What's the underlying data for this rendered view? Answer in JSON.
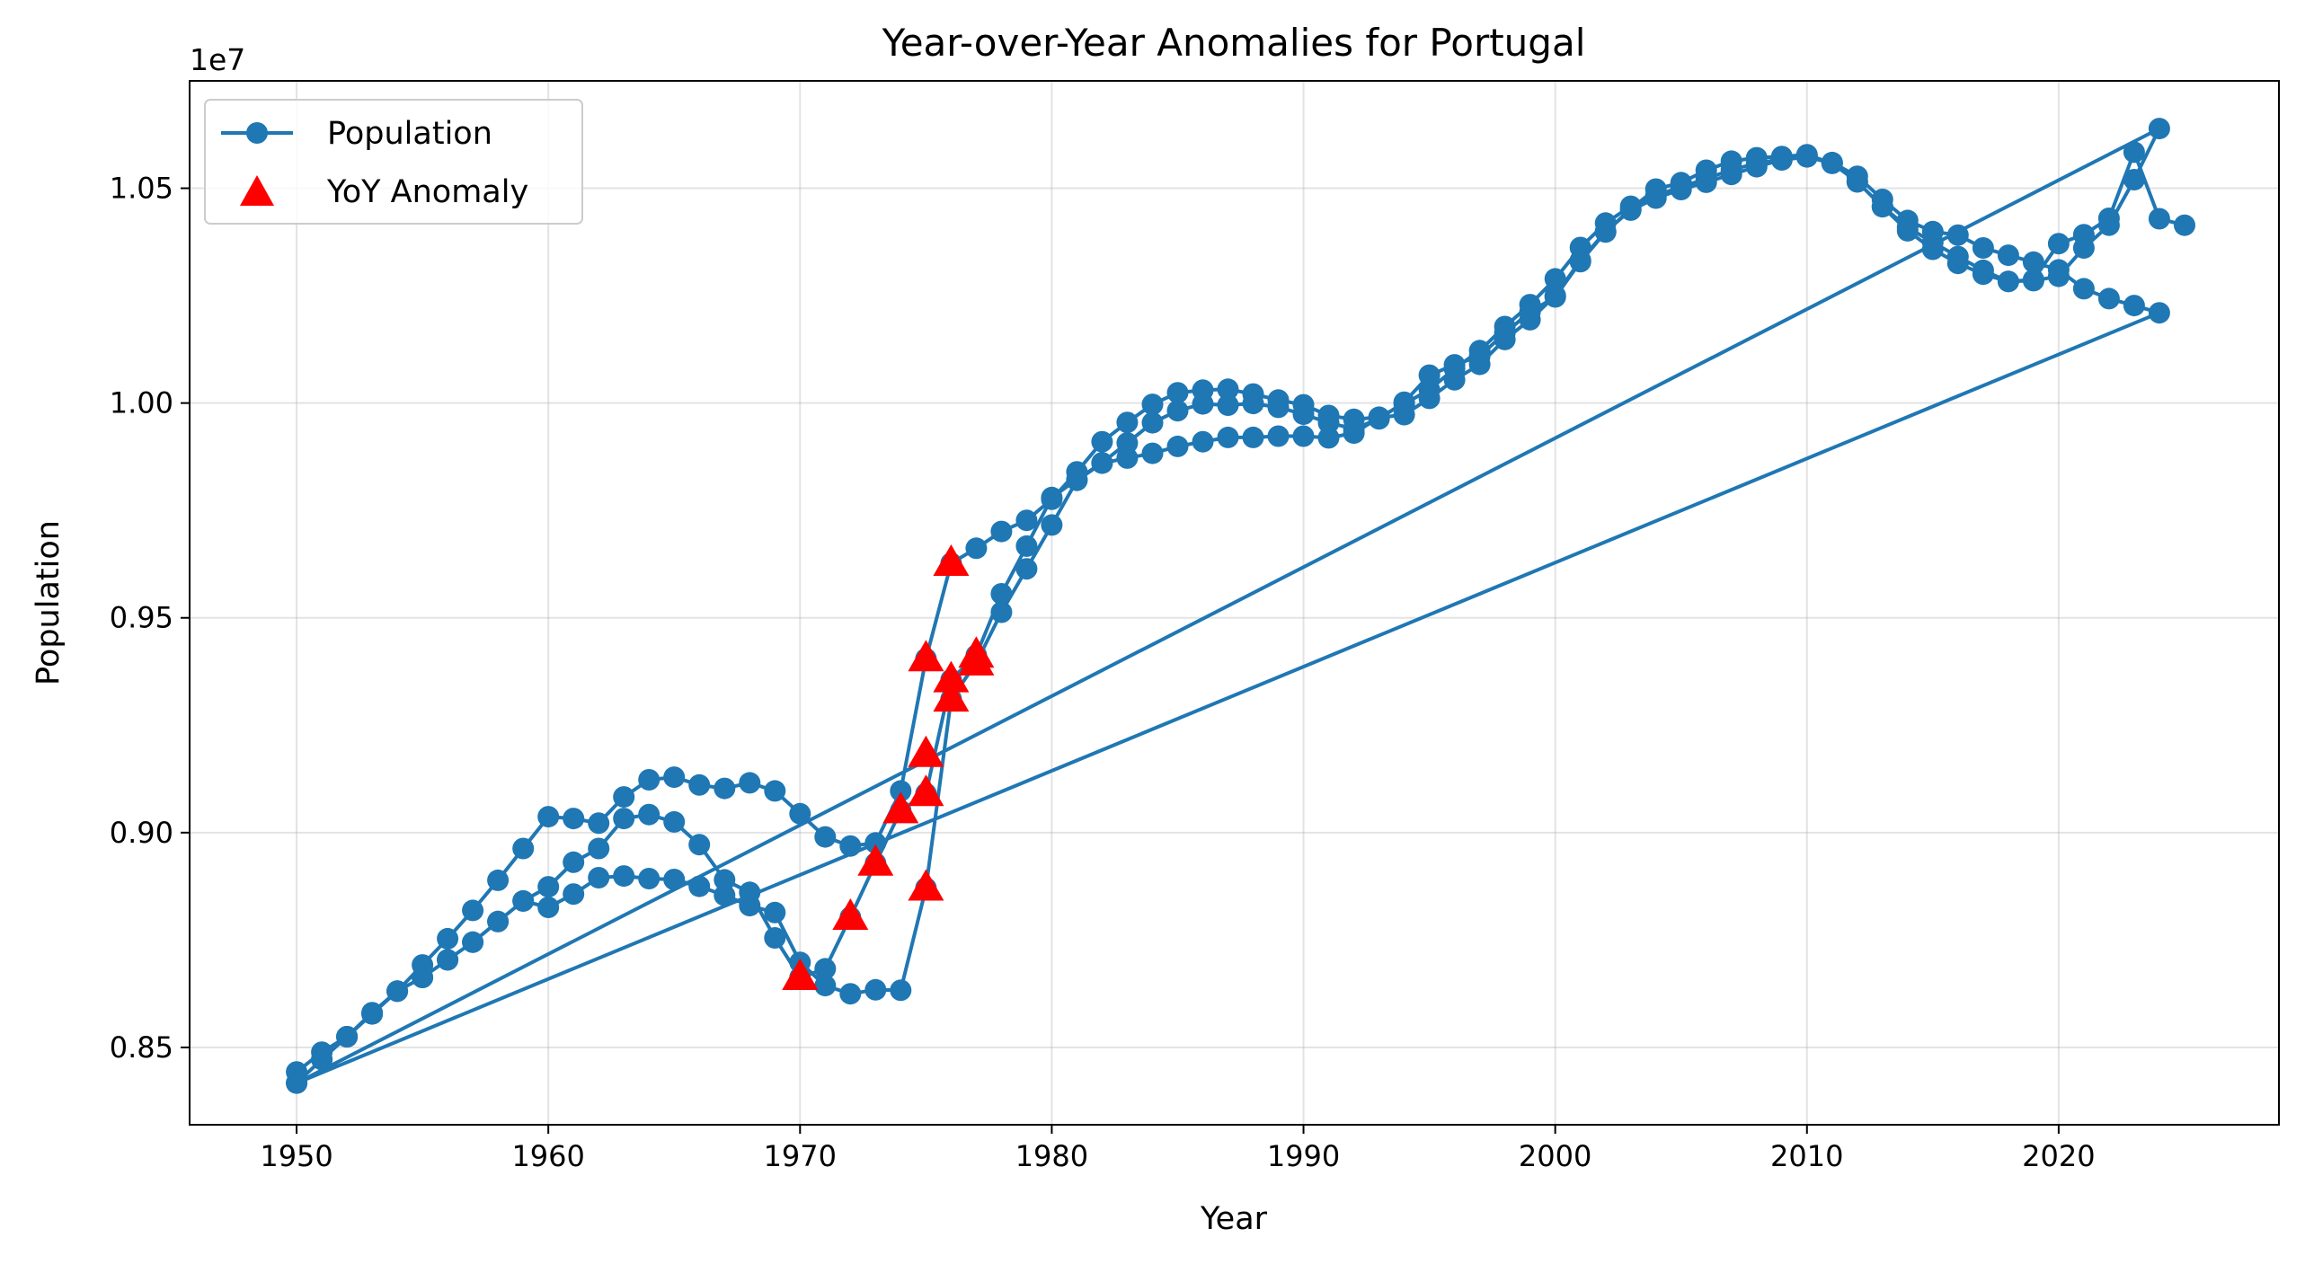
{
  "chart_data": {
    "type": "line",
    "title": "Year-over-Year Anomalies for Portugal",
    "xlabel": "Year",
    "ylabel": "Population",
    "y_offset_label": "1e7",
    "xlim": [
      1945.75,
      2028.75
    ],
    "ylim": [
      8320000,
      10750000
    ],
    "x_ticks": [
      1950,
      1960,
      1970,
      1980,
      1990,
      2000,
      2010,
      2020
    ],
    "x_tick_labels": [
      "1950",
      "1960",
      "1970",
      "1980",
      "1990",
      "2000",
      "2010",
      "2020"
    ],
    "y_ticks": [
      8500000,
      9000000,
      9500000,
      10000000,
      10500000
    ],
    "y_tick_labels": [
      "0.85",
      "0.90",
      "0.95",
      "1.00",
      "1.05"
    ],
    "grid": true,
    "legend_position": "upper left",
    "series": [
      {
        "name": "Population",
        "color": "#1f77b4",
        "marker": "circle",
        "segments": [
          {
            "x": [
              1950,
              1951,
              1952,
              1953,
              1954,
              1955,
              1956,
              1957,
              1958,
              1959,
              1960,
              1961,
              1962,
              1963,
              1964,
              1965,
              1966,
              1967,
              1968,
              1969,
              1970,
              1971,
              1972,
              1973,
              1974,
              1975,
              1976,
              1977,
              1978,
              1979,
              1980,
              1981,
              1982,
              1983,
              1984,
              1985,
              1986,
              1987,
              1988,
              1989,
              1990,
              1991,
              1992,
              1993,
              1994,
              1995,
              1996,
              1997,
              1998,
              1999,
              2000,
              2001,
              2002,
              2003,
              2004,
              2005,
              2006,
              2007,
              2008,
              2009,
              2010,
              2011,
              2012,
              2013,
              2014,
              2015,
              2016,
              2017,
              2018,
              2019,
              2020,
              2021,
              2022,
              2023,
              2024
            ],
            "y": [
              8443000,
              8489000,
              8525000,
              8581000,
              8631000,
              8692000,
              8753000,
              8819000,
              8889000,
              8963000,
              9037000,
              9033000,
              9022000,
              9083000,
              9123000,
              9129000,
              9111000,
              9103000,
              9116000,
              9097000,
              9044000,
              8990000,
              8969000,
              8976000,
              9097000,
              9405000,
              9627000,
              9662000,
              9701000,
              9727000,
              9776000,
              9840000,
              9910000,
              9955000,
              9997000,
              10024000,
              10030000,
              10032000,
              10021000,
              10007000,
              9996000,
              9971000,
              9962000,
              9967000,
              9998000,
              10031000,
              10080000,
              10122000,
              10178000,
              10229000,
              10289000,
              10362000,
              10419000,
              10458000,
              10483000,
              10503000,
              10522000,
              10543000,
              10558000,
              10568000,
              10573000,
              10558000,
              10515000,
              10457000,
              10401000,
              10358000,
              10325000,
              10300000,
              10283000,
              10285000,
              10295000,
              10361000,
              10414000,
              10520000,
              10639000
            ]
          },
          {
            "x": [
              1950,
              1951,
              1952,
              1953,
              1954,
              1955,
              1956,
              1957,
              1958,
              1959,
              1960,
              1961,
              1962,
              1963,
              1964,
              1965,
              1966,
              1967,
              1968,
              1969,
              1970,
              1971,
              1972,
              1973,
              1974,
              1975,
              1976,
              1977,
              1978,
              1979,
              1980,
              1981,
              1982,
              1983,
              1984,
              1985,
              1986,
              1987,
              1988,
              1989,
              1990,
              1991,
              1992,
              1993,
              1994,
              1995,
              1996,
              1997,
              1998,
              1999,
              2000,
              2001,
              2002,
              2003,
              2004,
              2005,
              2006,
              2007,
              2008,
              2009,
              2010,
              2011,
              2012,
              2013,
              2014,
              2015,
              2016,
              2017,
              2018,
              2019,
              2020,
              2021,
              2022,
              2023,
              2024
            ],
            "y": [
              8417000,
              8472000,
              8525000,
              8578000,
              8631000,
              8663000,
              8704000,
              8745000,
              8793000,
              8841000,
              8826000,
              8857000,
              8895000,
              8899000,
              8893000,
              8891000,
              8875000,
              8854000,
              8830000,
              8814000,
              8698000,
              8644000,
              8625000,
              8634000,
              8633000,
              8871000,
              9311000,
              9395000,
              9513000,
              9614000,
              9716000,
              9820000,
              9860000,
              9872000,
              9883000,
              9899000,
              9910000,
              9920000,
              9920000,
              9923000,
              9923000,
              9919000,
              9930000,
              9966000,
              9973000,
              10011000,
              10054000,
              10090000,
              10148000,
              10194000,
              10250000,
              10332000,
              10399000,
              10449000,
              10477000,
              10497000,
              10514000,
              10532000,
              10550000,
              10566000,
              10573000,
              10560000,
              10528000,
              10474000,
              10425000,
              10399000,
              10391000,
              10361000,
              10344000,
              10328000,
              10310000,
              10266000,
              10243000,
              10227000,
              10210000
            ]
          },
          {
            "x": [
              1950,
              1951,
              1952,
              1953,
              1954,
              1955,
              1956,
              1957,
              1958,
              1959,
              1960,
              1961,
              1962,
              1963,
              1964,
              1965,
              1966,
              1967,
              1968,
              1969,
              1970,
              1971,
              1972,
              1973,
              1974,
              1975,
              1976,
              1977,
              1978,
              1979,
              1980,
              1981,
              1982,
              1983,
              1984,
              1985,
              1986,
              1987,
              1988,
              1989,
              1990,
              1991,
              1992,
              1993,
              1994,
              1995,
              1996,
              1997,
              1998,
              1999,
              2000,
              2001,
              2002,
              2003,
              2004,
              2005,
              2006,
              2007,
              2008,
              2009,
              2010,
              2011,
              2012,
              2013,
              2014,
              2015,
              2016,
              2017,
              2018,
              2019,
              2020,
              2021,
              2022,
              2023,
              2024,
              2025
            ],
            "y": [
              8417000,
              8472000,
              8525000,
              8578000,
              8631000,
              8663000,
              8704000,
              8745000,
              8793000,
              8841000,
              8874000,
              8931000,
              8963000,
              9033000,
              9042000,
              9025000,
              8972000,
              8890000,
              8861000,
              8755000,
              8663000,
              8683000,
              8803000,
              8929000,
              9051000,
              9091000,
              9356000,
              9413000,
              9556000,
              9667000,
              9780000,
              9822000,
              9861000,
              9907000,
              9954000,
              9982000,
              9998000,
              9995000,
              9999000,
              9990000,
              9974000,
              9954000,
              9940000,
              9963000,
              10002000,
              10065000,
              10089000,
              10109000,
              10163000,
              10212000,
              10247000,
              10329000,
              10398000,
              10452000,
              10498000,
              10513000,
              10542000,
              10563000,
              10571000,
              10574000,
              10578000,
              10558000,
              10515000,
              10457000,
              10409000,
              10374000,
              10341000,
              10309000,
              10283000,
              10287000,
              10371000,
              10392000,
              10430000,
              10584000,
              10429000,
              10414000
            ]
          }
        ]
      },
      {
        "name": "YoY Anomaly",
        "color": "#ff0000",
        "marker": "triangle",
        "x": [
          1970,
          1972,
          1973,
          1974,
          1975,
          1975,
          1975,
          1975,
          1976,
          1976,
          1976,
          1977,
          1977,
          1970
        ],
        "y": [
          8663000,
          8803000,
          8929000,
          9051000,
          9091000,
          8871000,
          9405000,
          9182000,
          9356000,
          9311000,
          9627000,
          9413000,
          9395000,
          8663000
        ]
      }
    ]
  }
}
